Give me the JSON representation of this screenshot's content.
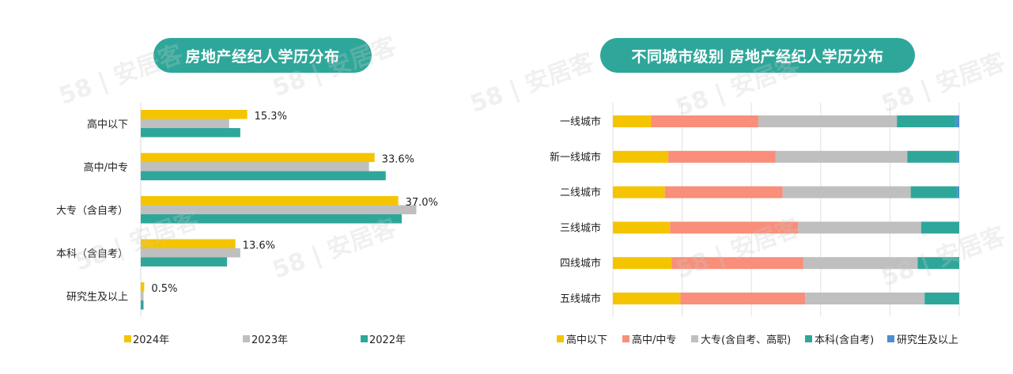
{
  "chart_data": [
    {
      "type": "bar",
      "orientation": "horizontal",
      "title": "房地产经纪人学历分布",
      "categories": [
        "高中以下",
        "高中/中专",
        "大专（含自考）",
        "本科（含自考）",
        "研究生及以上"
      ],
      "series": [
        {
          "name": "2024年",
          "values": [
            15.3,
            33.6,
            37.0,
            13.6,
            0.5
          ],
          "color": "#f5c400"
        },
        {
          "name": "2023年",
          "values": [
            12.7,
            32.8,
            39.6,
            14.3,
            0.4
          ],
          "color": "#bfbfbf"
        },
        {
          "name": "2022年",
          "values": [
            14.3,
            35.2,
            37.5,
            12.4,
            0.4
          ],
          "color": "#2ea79a"
        }
      ],
      "data_labels": [
        "15.3%",
        "33.6%",
        "37.0%",
        "13.6%",
        "0.5%"
      ],
      "xlim": [
        0,
        100
      ],
      "grid": false,
      "legend": "bottom"
    },
    {
      "type": "bar",
      "orientation": "horizontal",
      "stacked": true,
      "title": "不同城市级别 房地产经纪人学历分布",
      "categories": [
        "一线城市",
        "新一线城市",
        "二线城市",
        "三线城市",
        "四线城市",
        "五线城市"
      ],
      "series": [
        {
          "name": "高中以下",
          "values": [
            11,
            16,
            15,
            16.5,
            17,
            19.5
          ],
          "color": "#f5c400"
        },
        {
          "name": "高中/中专",
          "values": [
            31,
            31,
            34,
            37,
            38,
            36
          ],
          "color": "#f98e7a"
        },
        {
          "name": "大专(含自考、高职)",
          "values": [
            40,
            38,
            37,
            35.5,
            33,
            34.5
          ],
          "color": "#bfbfbf"
        },
        {
          "name": "本科(含自考)",
          "values": [
            17,
            14.5,
            13.5,
            11,
            12,
            10
          ],
          "color": "#2ea79a"
        },
        {
          "name": "研究生及以上",
          "values": [
            1,
            0.5,
            0.5,
            0,
            0,
            0
          ],
          "color": "#4b8fd1"
        }
      ],
      "xlim": [
        0,
        100
      ],
      "grid": true,
      "legend": "bottom"
    }
  ],
  "watermark": "58 | 安居客"
}
